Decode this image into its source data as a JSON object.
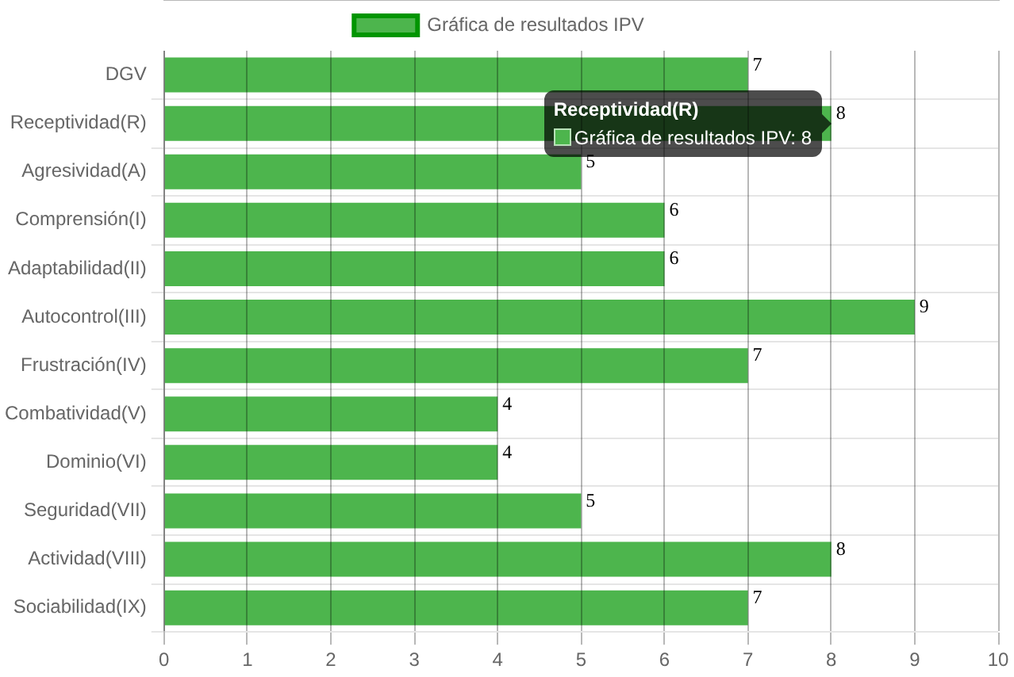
{
  "chart_data": {
    "type": "bar",
    "orientation": "horizontal",
    "categories": [
      "DGV",
      "Receptividad(R)",
      "Agresividad(A)",
      "Comprensión(I)",
      "Adaptabilidad(II)",
      "Autocontrol(III)",
      "Frustración(IV)",
      "Combatividad(V)",
      "Dominio(VI)",
      "Seguridad(VII)",
      "Actividad(VIII)",
      "Sociabilidad(IX)"
    ],
    "series": [
      {
        "name": "Gráfica de resultados IPV",
        "color": "#4db54d",
        "values": [
          7,
          8,
          5,
          6,
          6,
          9,
          7,
          4,
          4,
          5,
          8,
          7
        ]
      }
    ],
    "xlim": [
      0,
      10
    ],
    "xticks": [
      0,
      1,
      2,
      3,
      4,
      5,
      6,
      7,
      8,
      9,
      10
    ],
    "grid": true,
    "legend": "top",
    "data_labels": true,
    "annotations": [
      {
        "text": "Gráfica de resultados IPV: 8",
        "x": 8,
        "y": "Receptividad(R)"
      }
    ]
  }
}
